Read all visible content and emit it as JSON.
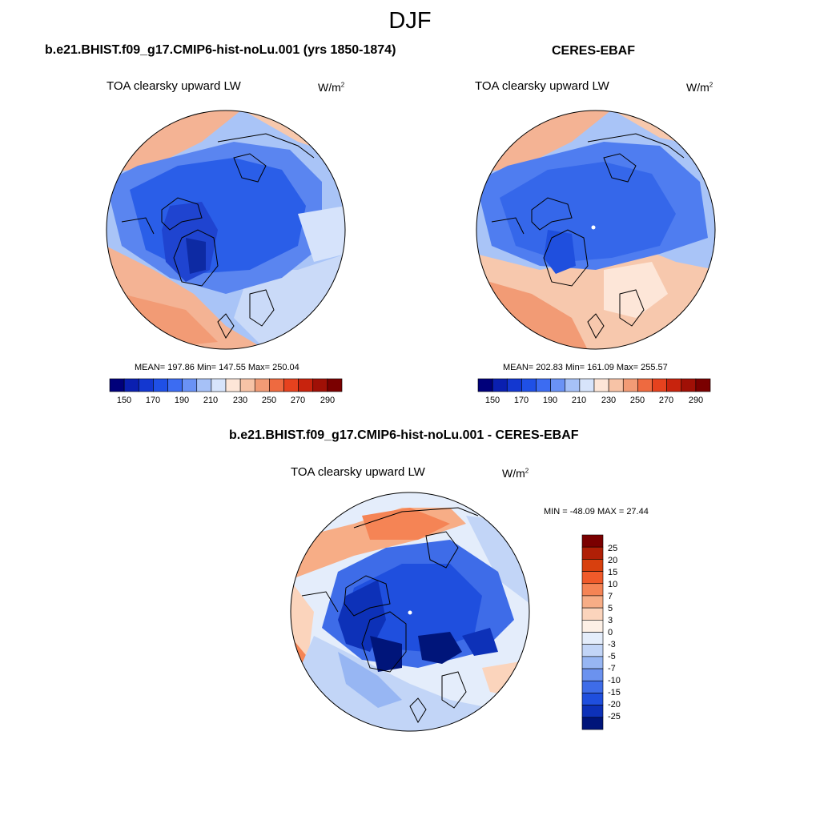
{
  "title": "DJF",
  "panels": [
    {
      "title": "b.e21.BHIST.f09_g17.CMIP6-hist-noLu.001 (yrs 1850-1874)",
      "variable": "TOA clearsky upward LW",
      "units_base": "W/m",
      "units_exp": "2",
      "stats": "MEAN= 197.86  Min= 147.55  Max= 250.04"
    },
    {
      "title": "CERES-EBAF",
      "variable": "TOA clearsky upward LW",
      "units_base": "W/m",
      "units_exp": "2",
      "stats": "MEAN= 202.83  Min= 161.09  Max= 255.57"
    },
    {
      "title": "b.e21.BHIST.f09_g17.CMIP6-hist-noLu.001 - CERES-EBAF",
      "variable": "TOA clearsky upward LW",
      "units_base": "W/m",
      "units_exp": "2",
      "stats": "MIN = -48.09 MAX =  27.44"
    }
  ],
  "abs_colorbar": {
    "ticks": [
      "150",
      "170",
      "190",
      "210",
      "230",
      "250",
      "270",
      "290"
    ],
    "colors": [
      "#00007a",
      "#0a1fb0",
      "#1337d0",
      "#1f50e6",
      "#3c6cf2",
      "#6a92f5",
      "#a6c1f7",
      "#d7e4fb",
      "#fde6d8",
      "#f7c3a6",
      "#f29b75",
      "#ee6a40",
      "#e6421e",
      "#c8230d",
      "#a01006",
      "#7a0000"
    ]
  },
  "diff_colorbar": {
    "ticks": [
      "25",
      "20",
      "15",
      "10",
      "7",
      "5",
      "3",
      "0",
      "-3",
      "-5",
      "-7",
      "-10",
      "-15",
      "-20",
      "-25"
    ],
    "colors": [
      "#7a0000",
      "#b01f06",
      "#d8400e",
      "#f05a2a",
      "#f58455",
      "#f7ad86",
      "#fbd4bc",
      "#fdf0e6",
      "#e4edfb",
      "#c2d5f7",
      "#97b6f3",
      "#6b92ef",
      "#3e6ce8",
      "#1f4fde",
      "#0d31b8",
      "#00157a"
    ]
  }
}
